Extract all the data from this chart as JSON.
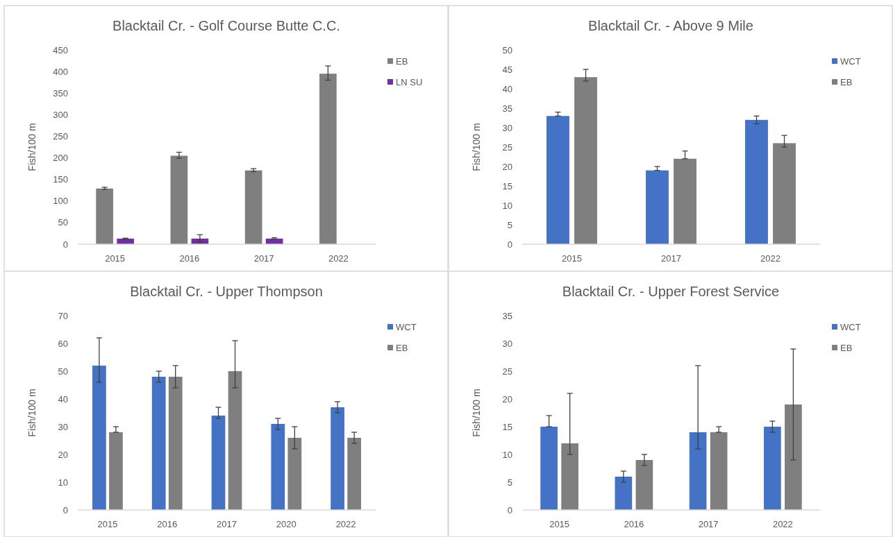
{
  "chart_data": [
    {
      "type": "bar",
      "title": "Blacktail Cr. - Golf Course Butte C.C.",
      "ylabel": "Fish/100 m",
      "categories": [
        "2015",
        "2016",
        "2017",
        "2022"
      ],
      "ylim": [
        0,
        450
      ],
      "yticks": [
        0,
        50,
        100,
        150,
        200,
        250,
        300,
        350,
        400,
        450
      ],
      "grid": false,
      "legend": "right",
      "series": [
        {
          "name": "EB",
          "color": "#7f7f7f",
          "values": [
            129,
            205,
            171,
            395
          ],
          "errors": [
            [
              127,
              132
            ],
            [
              199,
              213
            ],
            [
              168,
              175
            ],
            [
              380,
              413
            ]
          ]
        },
        {
          "name": "LN SU",
          "color": "#7030a0",
          "values": [
            13,
            13,
            13,
            null
          ],
          "errors": [
            [
              12,
              14
            ],
            [
              5,
              22
            ],
            [
              12,
              15
            ],
            null
          ]
        }
      ]
    },
    {
      "type": "bar",
      "title": "Blacktail Cr. - Above 9 Mile",
      "ylabel": "Fish/100 m",
      "categories": [
        "2015",
        "2017",
        "2022"
      ],
      "ylim": [
        0,
        50
      ],
      "yticks": [
        0,
        5,
        10,
        15,
        20,
        25,
        30,
        35,
        40,
        45,
        50
      ],
      "grid": false,
      "legend": "right",
      "series": [
        {
          "name": "WCT",
          "color": "#4472c4",
          "values": [
            33,
            19,
            32
          ],
          "errors": [
            [
              33,
              34
            ],
            [
              19,
              20
            ],
            [
              31,
              33
            ]
          ]
        },
        {
          "name": "EB",
          "color": "#7f7f7f",
          "values": [
            43,
            22,
            26
          ],
          "errors": [
            [
              42,
              45
            ],
            [
              22,
              24
            ],
            [
              25,
              28
            ]
          ]
        }
      ]
    },
    {
      "type": "bar",
      "title": "Blacktail Cr. - Upper Thompson",
      "ylabel": "Fish/100 m",
      "categories": [
        "2015",
        "2016",
        "2017",
        "2020",
        "2022"
      ],
      "ylim": [
        0,
        70
      ],
      "yticks": [
        0,
        10,
        20,
        30,
        40,
        50,
        60,
        70
      ],
      "grid": false,
      "legend": "right",
      "series": [
        {
          "name": "WCT",
          "color": "#4472c4",
          "values": [
            52,
            48,
            34,
            31,
            37
          ],
          "errors": [
            [
              46,
              62
            ],
            [
              46,
              50
            ],
            [
              33,
              37
            ],
            [
              29,
              33
            ],
            [
              35,
              39
            ]
          ]
        },
        {
          "name": "EB",
          "color": "#7f7f7f",
          "values": [
            28,
            48,
            50,
            26,
            26
          ],
          "errors": [
            [
              28,
              30
            ],
            [
              44,
              52
            ],
            [
              44,
              61
            ],
            [
              22,
              30
            ],
            [
              24,
              28
            ]
          ]
        }
      ]
    },
    {
      "type": "bar",
      "title": "Blacktail Cr. - Upper Forest Service",
      "ylabel": "Fish/100 m",
      "categories": [
        "2015",
        "2016",
        "2017",
        "2022"
      ],
      "ylim": [
        0,
        35
      ],
      "yticks": [
        0,
        5,
        10,
        15,
        20,
        25,
        30,
        35
      ],
      "grid": false,
      "legend": "right",
      "series": [
        {
          "name": "WCT",
          "color": "#4472c4",
          "values": [
            15,
            6,
            14,
            15
          ],
          "errors": [
            [
              15,
              17
            ],
            [
              5,
              7
            ],
            [
              11,
              26
            ],
            [
              14,
              16
            ]
          ]
        },
        {
          "name": "EB",
          "color": "#7f7f7f",
          "values": [
            12,
            9,
            14,
            19
          ],
          "errors": [
            [
              10,
              21
            ],
            [
              8,
              10
            ],
            [
              14,
              15
            ],
            [
              9,
              29
            ]
          ]
        }
      ]
    }
  ]
}
